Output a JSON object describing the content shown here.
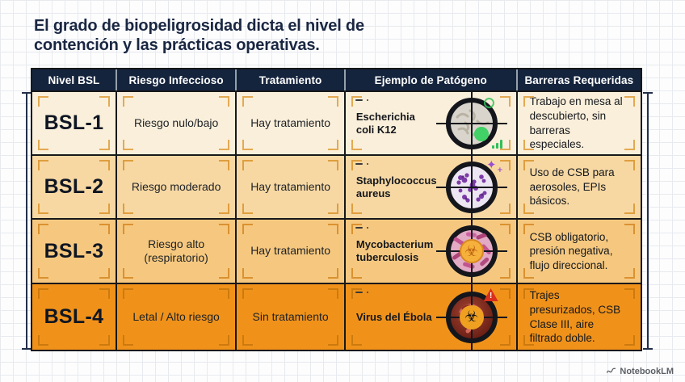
{
  "title": "El grado de biopeligrosidad dicta el nivel de\ncontención y las prácticas operativas.",
  "table": {
    "headers": [
      "Nivel BSL",
      "Riesgo Infeccioso",
      "Tratamiento",
      "Ejemplo de Patógeno",
      "Barreras Requeridas"
    ],
    "rows": [
      {
        "level": "BSL-1",
        "risk": "Riesgo nulo/bajo",
        "treatment": "Hay tratamiento",
        "pathogen_name": "Escherichia\ncoli K12",
        "barriers": "Trabajo en mesa al descubierto, sin barreras especiales.",
        "icons": [
          "green-status-icon",
          "signal-bars-icon"
        ]
      },
      {
        "level": "BSL-2",
        "risk": "Riesgo moderado",
        "treatment": "Hay tratamiento",
        "pathogen_name": "Staphylococcus\naureus",
        "barriers": "Uso de CSB para aerosoles, EPIs básicos.",
        "icons": [
          "sparkle-icon"
        ]
      },
      {
        "level": "BSL-3",
        "risk": "Riesgo alto\n(respiratorio)",
        "treatment": "Hay tratamiento",
        "pathogen_name": "Mycobacterium\ntuberculosis",
        "barriers": "CSB obligatorio, presión negativa, flujo direccional.",
        "icons": [
          "biohazard-icon"
        ]
      },
      {
        "level": "BSL-4",
        "risk": "Letal / Alto riesgo",
        "treatment": "Sin tratamiento",
        "pathogen_name": "Virus del Ébola",
        "barriers": "Trajes presurizados, CSB Clase III, aire filtrado doble.",
        "icons": [
          "biohazard-icon",
          "warning-triangle-icon"
        ]
      }
    ]
  },
  "footer": {
    "brand": "NotebookLM"
  },
  "colors": {
    "header_bg": "#15243d",
    "title_navy": "#1a2742",
    "row1_bg": "#faefda",
    "row2_bg": "#f7d8a3",
    "row3_bg": "#f6c87f",
    "row4_bg": "#f0921a",
    "safe_green": "#2fbf5c",
    "alert_red": "#d92f1e",
    "sparkle_purple": "#9a4ed2"
  }
}
